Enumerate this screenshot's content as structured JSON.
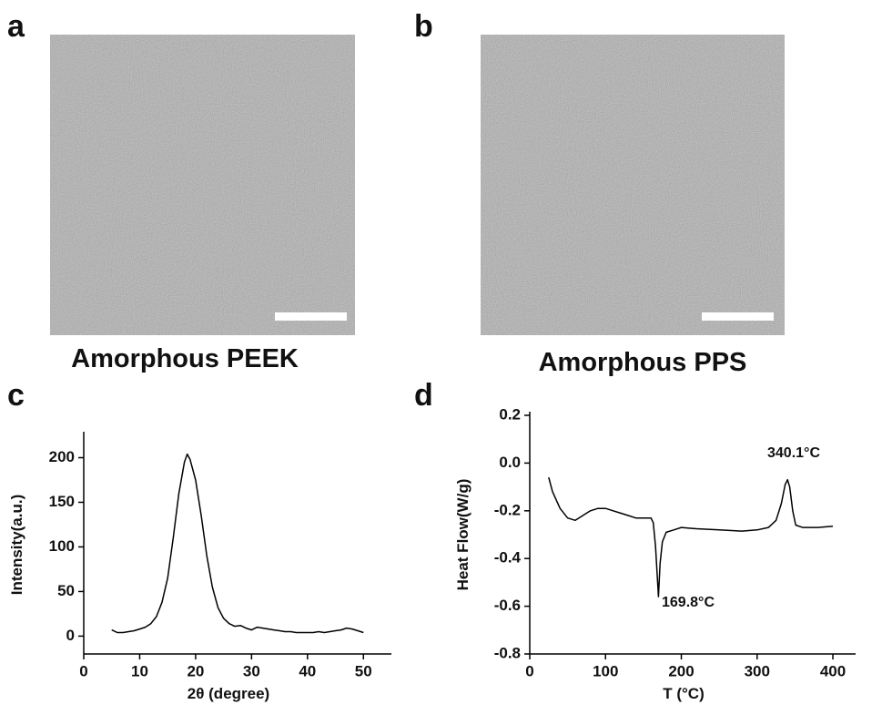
{
  "panels": [
    {
      "label": "a",
      "caption": "Amorphous PEEK"
    },
    {
      "label": "b",
      "caption": "Amorphous PPS"
    }
  ],
  "chart_data": [
    {
      "type": "line",
      "panel": "c",
      "xlabel": "2θ (degree)",
      "ylabel": "Intensity(a.u.)",
      "color": "#000000",
      "x": [
        5,
        6,
        7,
        8,
        9,
        10,
        11,
        12,
        13,
        14,
        15,
        16,
        17,
        18,
        18.5,
        19,
        20,
        21,
        22,
        23,
        24,
        25,
        26,
        27,
        28,
        29,
        30,
        31,
        32,
        33,
        34,
        35,
        36,
        37,
        38,
        39,
        40,
        41,
        42,
        43,
        44,
        45,
        46,
        47,
        48,
        49,
        50
      ],
      "values": [
        7,
        4,
        4,
        5,
        6,
        8,
        10,
        14,
        22,
        38,
        65,
        110,
        160,
        195,
        204,
        198,
        175,
        135,
        90,
        55,
        32,
        20,
        14,
        11,
        12,
        9,
        7,
        10,
        9,
        8,
        7,
        6,
        5,
        5,
        4,
        4,
        4,
        4,
        5,
        4,
        5,
        6,
        7,
        9,
        8,
        6,
        4
      ],
      "xlim": [
        0,
        55
      ],
      "ylim": [
        -20,
        225
      ],
      "xticks": [
        0,
        10,
        20,
        30,
        40,
        50
      ],
      "yticks": [
        0,
        50,
        100,
        150,
        200
      ]
    },
    {
      "type": "line",
      "panel": "d",
      "xlabel": "T (°C)",
      "ylabel": "Heat Flow(W/g)",
      "color": "#000000",
      "x": [
        25,
        30,
        40,
        50,
        60,
        70,
        80,
        90,
        100,
        110,
        120,
        130,
        140,
        150,
        160,
        163,
        166,
        169.8,
        172,
        175,
        180,
        190,
        200,
        220,
        250,
        280,
        300,
        315,
        325,
        332,
        337,
        340.1,
        343,
        347,
        351,
        360,
        380,
        400
      ],
      "values": [
        -0.06,
        -0.12,
        -0.19,
        -0.23,
        -0.24,
        -0.22,
        -0.2,
        -0.19,
        -0.19,
        -0.2,
        -0.21,
        -0.22,
        -0.23,
        -0.23,
        -0.23,
        -0.25,
        -0.35,
        -0.56,
        -0.42,
        -0.33,
        -0.29,
        -0.28,
        -0.27,
        -0.275,
        -0.28,
        -0.285,
        -0.28,
        -0.27,
        -0.24,
        -0.17,
        -0.09,
        -0.07,
        -0.1,
        -0.2,
        -0.26,
        -0.27,
        -0.27,
        -0.265
      ],
      "xlim": [
        0,
        430
      ],
      "ylim": [
        -0.8,
        0.2
      ],
      "xticks": [
        0,
        100,
        200,
        300,
        400
      ],
      "yticks": [
        0.2,
        {
          "value": 0,
          "label": "0.0"
        },
        -0.2,
        -0.4,
        -0.6,
        -0.8
      ],
      "annotations": [
        "340.1°C",
        "169.8°C"
      ]
    }
  ]
}
